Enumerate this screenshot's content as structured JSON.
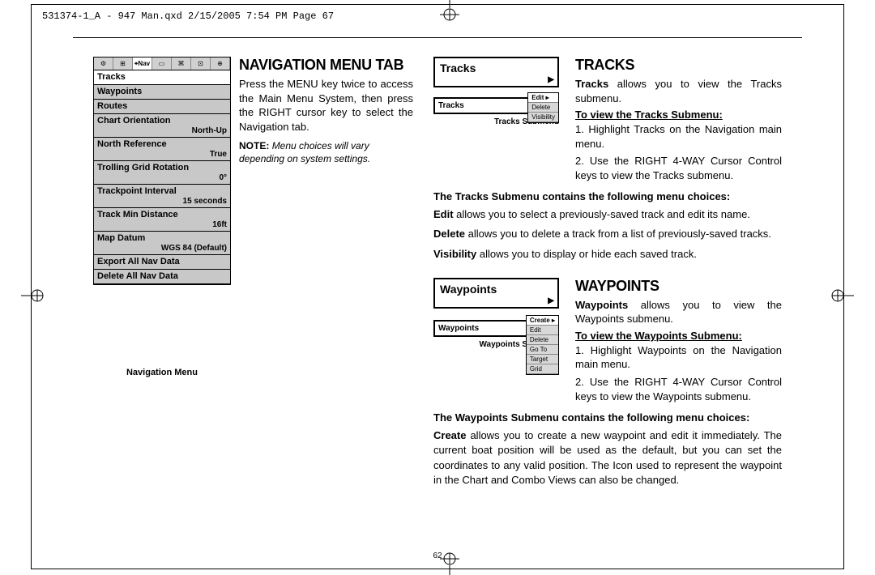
{
  "header": "531374-1_A - 947 Man.qxd  2/15/2005  7:54 PM  Page 67",
  "page_number": "62",
  "nav_menu": {
    "caption": "Navigation Menu",
    "tab_icons": [
      "⚙",
      "⊞",
      "⌖Nav",
      "▭",
      "⌘",
      "⊡",
      "⊕"
    ],
    "active_tab": 2,
    "items": [
      {
        "label": "Tracks",
        "value": "",
        "selected": true
      },
      {
        "label": "Waypoints",
        "value": ""
      },
      {
        "label": "Routes",
        "value": ""
      },
      {
        "label": "Chart Orientation",
        "value": "North-Up"
      },
      {
        "label": "North Reference",
        "value": "True"
      },
      {
        "label": "Trolling Grid Rotation",
        "value": "0°"
      },
      {
        "label": "Trackpoint Interval",
        "value": "15 seconds"
      },
      {
        "label": "Track Min Distance",
        "value": "16ft"
      },
      {
        "label": "Map Datum",
        "value": "WGS 84 (Default)"
      },
      {
        "label": "Export All Nav Data",
        "value": ""
      },
      {
        "label": "Delete All Nav Data",
        "value": ""
      }
    ]
  },
  "section1": {
    "title": "Navigation Menu Tab",
    "body": "Press the MENU key twice to access the Main Menu System, then press the RIGHT cursor key to select the Navigation tab.",
    "note_label": "NOTE:",
    "note_body": "Menu choices will vary depending on system settings."
  },
  "tracks": {
    "title": "Tracks",
    "box_label": "Tracks",
    "intro_b": "Tracks",
    "intro": " allows you to view the Tracks submenu.",
    "subhead": "To view the Tracks Submenu:",
    "step1": "1. Highlight Tracks on the Navigation main menu.",
    "step2": "2. Use the RIGHT 4-WAY Cursor Control keys to view the Tracks submenu.",
    "submenu_caption": "Tracks Submenu",
    "submenu_label": "Tracks",
    "submenu_opts": [
      "Edit",
      "Delete",
      "Visibility"
    ],
    "choices_hdr": "The Tracks Submenu contains the following menu choices:",
    "choice1_b": "Edit",
    "choice1": " allows you to select a previously-saved track and edit its name.",
    "choice2_b": "Delete",
    "choice2": " allows you to delete a track from a list of previously-saved tracks.",
    "choice3_b": "Visibility",
    "choice3": " allows you to display or hide each saved track."
  },
  "waypoints": {
    "title": "Waypoints",
    "box_label": "Waypoints",
    "intro_b": "Waypoints",
    "intro": " allows you to view the Waypoints submenu.",
    "subhead": "To view the Waypoints Submenu:",
    "step1": "1. Highlight Waypoints on the Navigation main menu.",
    "step2": "2. Use the RIGHT 4-WAY Cursor Control keys to view the Waypoints submenu.",
    "submenu_caption": "Waypoints Submenu",
    "submenu_label": "Waypoints",
    "submenu_opts": [
      "Create",
      "Edit",
      "Delete",
      "Go To",
      "Target",
      "Grid"
    ],
    "choices_hdr": "The Waypoints Submenu contains the following menu choices:",
    "choice1_b": "Create",
    "choice1": " allows you to create a new waypoint and edit it immediately. The current boat position will be used as the default, but you can set the coordinates to any valid position. The Icon used to represent the waypoint in the Chart and Combo Views can also be changed."
  }
}
